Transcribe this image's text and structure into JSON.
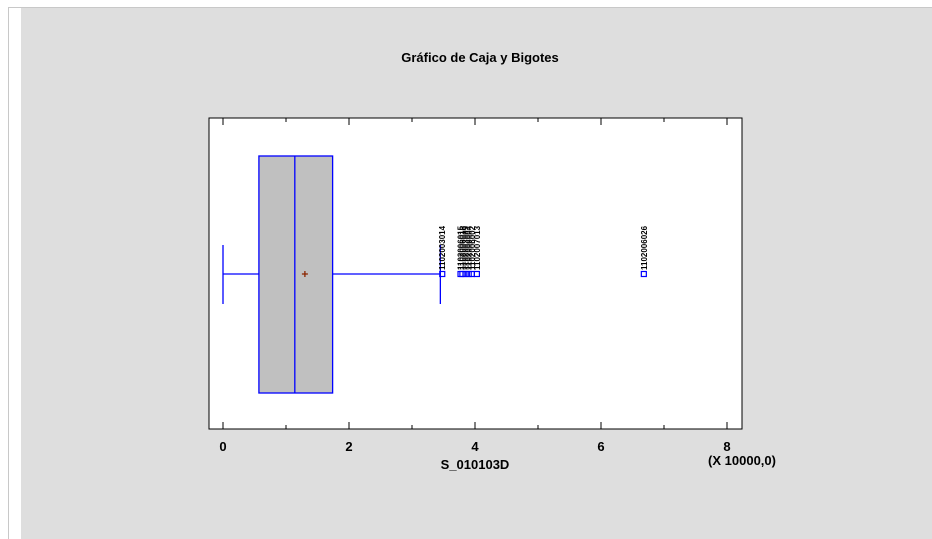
{
  "chart_data": {
    "type": "boxplot",
    "title": "Gráfico de Caja y Bigotes",
    "xlabel": "S_010103D",
    "scale_note": "(X 10000,0)",
    "orientation": "horizontal",
    "xlim": [
      -0.5,
      8.1
    ],
    "x_ticks": [
      0,
      2,
      4,
      6,
      8
    ],
    "x_tick_labels": [
      "0",
      "2",
      "4",
      "6",
      "8"
    ],
    "minor_ticks": [
      1,
      3,
      5,
      7
    ],
    "box": {
      "whisker_low": 0.0,
      "q1": 0.57,
      "median": 1.14,
      "q3": 1.74,
      "whisker_high": 3.45,
      "mean": 1.3
    },
    "outliers": [
      {
        "x": 3.48,
        "label": "1102003014"
      },
      {
        "x": 3.77,
        "label": "1102006015"
      },
      {
        "x": 3.8,
        "label": "1102006018"
      },
      {
        "x": 3.85,
        "label": "1102003009"
      },
      {
        "x": 3.9,
        "label": "1102006004"
      },
      {
        "x": 3.95,
        "label": "1102006002"
      },
      {
        "x": 4.03,
        "label": "1102007013"
      },
      {
        "x": 6.68,
        "label": "1102006026"
      }
    ],
    "colors": {
      "background": "#dedede",
      "plot_area": "#ffffff",
      "box_fill": "#c0c0c0",
      "box_stroke": "#0000ff",
      "mean_marker": "#8b2500",
      "outlier_marker": "#0000ff",
      "axis": "#000000"
    }
  }
}
